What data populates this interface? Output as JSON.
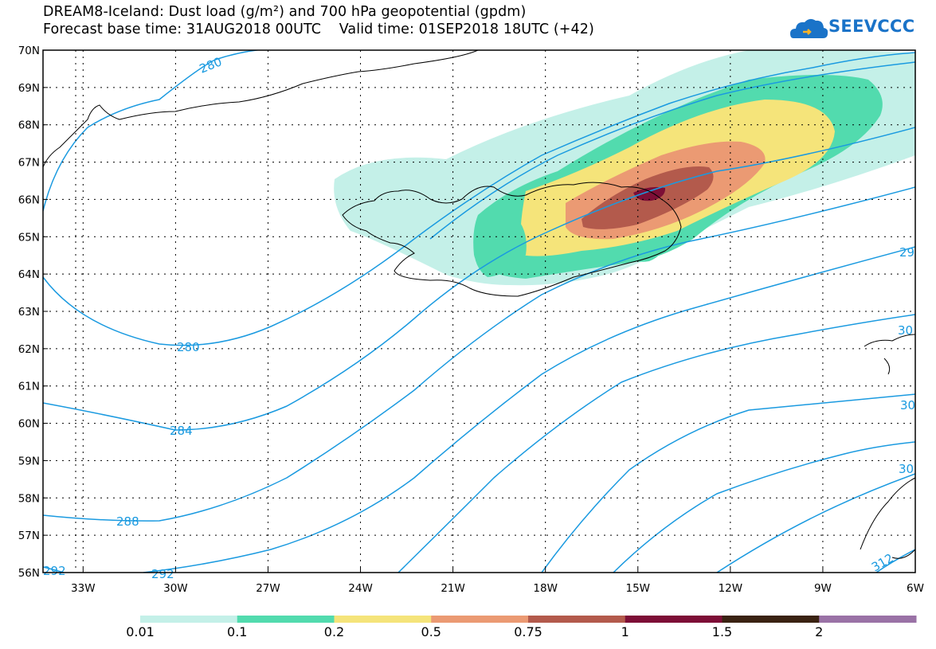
{
  "title": {
    "line1": "DREAM8-Iceland: Dust load (g/m²) and 700 hPa geopotential (gpdm)",
    "line2": "Forecast base time: 31AUG2018 00UTC    Valid time: 01SEP2018 18UTC (+42)"
  },
  "logo": {
    "text": "SEEVCCC"
  },
  "map": {
    "lat_labels": [
      "70N",
      "69N",
      "68N",
      "67N",
      "66N",
      "65N",
      "64N",
      "63N",
      "62N",
      "61N",
      "60N",
      "59N",
      "58N",
      "57N",
      "56N"
    ],
    "lon_labels": [
      "33W",
      "30W",
      "27W",
      "24W",
      "21W",
      "18W",
      "15W",
      "12W",
      "9W",
      "6W"
    ],
    "lat_range": [
      56,
      70
    ],
    "lon_range": [
      -34.3,
      -6
    ],
    "contour_labels": {
      "c280_top": "280",
      "c280_mid": "280",
      "c284": "284",
      "c288": "288",
      "c292_left": "292",
      "c292_bottom": "292",
      "c29_right": "29",
      "c30_a": "30",
      "c30_b": "30",
      "c30_c": "30",
      "c312": "312"
    }
  },
  "colorbar": {
    "levels": [
      "0.01",
      "0.1",
      "0.2",
      "0.5",
      "0.75",
      "1",
      "1.5",
      "2"
    ],
    "colors": [
      "#c4f0e8",
      "#52dbae",
      "#f5e47a",
      "#eb9a73",
      "#b35a4c",
      "#7d0e36",
      "#3a2212",
      "#9a72a6"
    ]
  },
  "colors": {
    "contour": "#1a9ae0",
    "coast": "#000000"
  }
}
